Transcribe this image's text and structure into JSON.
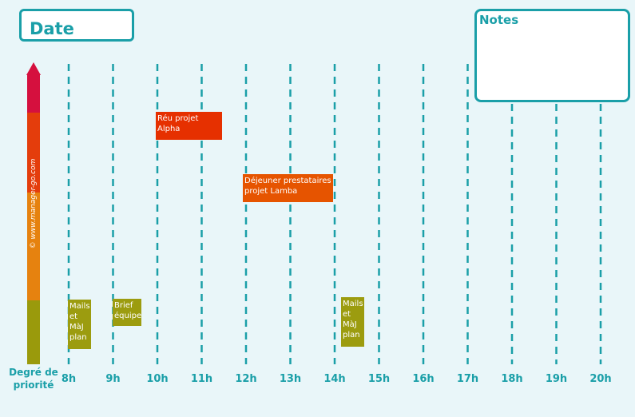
{
  "header": {
    "date_label": "Date",
    "notes_label": "Notes"
  },
  "priority_axis": {
    "label_line1": "Degré de",
    "label_line2": "priorité",
    "watermark": "© www.manager-go.com",
    "colors": [
      "#d5103e",
      "#e43d0c",
      "#e6820f",
      "#9a9a0c"
    ]
  },
  "hours": [
    "8h",
    "9h",
    "10h",
    "11h",
    "12h",
    "13h",
    "14h",
    "15h",
    "16h",
    "17h",
    "18h",
    "19h",
    "20h"
  ],
  "tasks": [
    {
      "label": "Réu projet Alpha",
      "color": "#e63000"
    },
    {
      "label": "Déjeuner prestataires projet Lamba",
      "color": "#e65400"
    },
    {
      "label": "Mails et MàJ plan",
      "color": "#9c9c0f"
    },
    {
      "label": "Brief équipe",
      "color": "#9c9c0f"
    },
    {
      "label": "Mails et MàJ plan",
      "color": "#9c9c0f"
    }
  ]
}
